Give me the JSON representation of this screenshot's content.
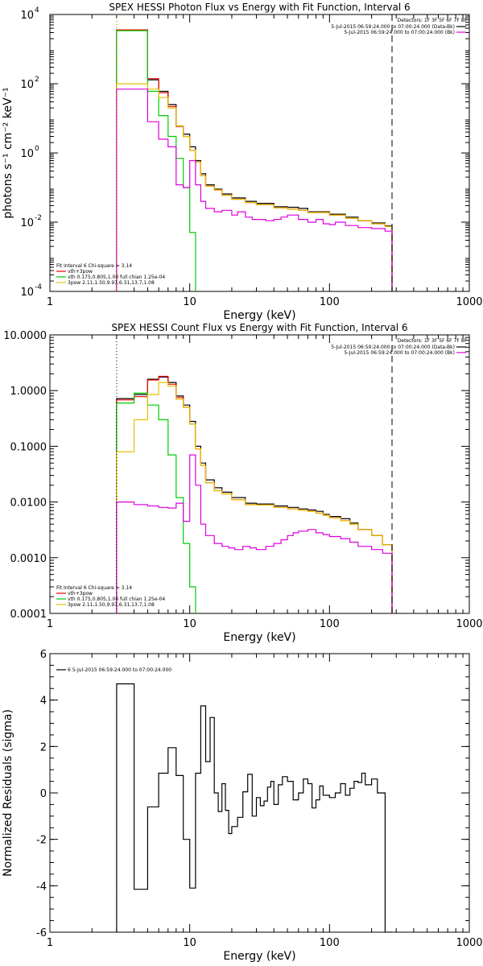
{
  "chart_data": [
    {
      "type": "line",
      "step": true,
      "title": "SPEX HESSI Photon Flux vs Energy with Fit Function, Interval 6",
      "xlabel": "Energy (keV)",
      "ylabel": "photons s⁻¹ cm⁻² keV⁻¹",
      "xscale": "log",
      "yscale": "log",
      "xlim": [
        1,
        1000
      ],
      "ylim": [
        0.0001,
        10000
      ],
      "xticks": [
        1,
        10,
        100,
        1000
      ],
      "xtick_labels": [
        "1",
        "10",
        "100",
        "1000"
      ],
      "yticks": [
        0.0001,
        0.01,
        1,
        100,
        10000
      ],
      "ytick_labels": [
        {
          "base": "10",
          "exp": "-4"
        },
        {
          "base": "10",
          "exp": "-2"
        },
        {
          "base": "10",
          "exp": "0"
        },
        {
          "base": "10",
          "exp": "2"
        },
        {
          "base": "10",
          "exp": "4"
        }
      ],
      "legend_top_right": {
        "header": "Detectors: 1F 3F 5F 6F 7F 8F",
        "entries": [
          {
            "text": "5-Jul-2015 06:59:24.000 to 07:00:24.000 (Data-Bk)",
            "color": "#000000"
          },
          {
            "text": "5-Jul-2015 06:59:24.000 to 07:00:24.000 (Bk)",
            "color": "#dd00dd"
          }
        ]
      },
      "legend_bottom_left": {
        "header": "Fit Interval 6   Chi-square = 3.14",
        "entries": [
          {
            "text": "vth+3pow",
            "color": "#ee0000"
          },
          {
            "text": "vth 0.175,0.805,1.00  full chian 1.25e-04",
            "color": "#00cc00"
          },
          {
            "text": "3pow 2.11,1.50,9.97,6.31,13.7,1.08",
            "color": "#e8c000"
          }
        ]
      },
      "vlines": [
        {
          "x": 3.0,
          "style": "dotted",
          "color": "#000000"
        },
        {
          "x": 3.0,
          "style": "dotted",
          "color": "#e8a000"
        },
        {
          "x": 280,
          "style": "dashed",
          "color": "#000000"
        }
      ],
      "series": [
        {
          "name": "Data-Bk",
          "color": "#000000",
          "x": [
            3.0,
            4.0,
            5.0,
            6.0,
            7.0,
            8.0,
            9.0,
            10.0,
            11.0,
            12.0,
            13.0,
            15.0,
            17.0,
            20.0,
            25.0,
            30.0,
            40.0,
            50.0,
            60.0,
            70.0,
            100.0,
            130.0,
            160.0,
            200.0,
            250.0,
            280.0
          ],
          "y": [
            3500,
            3500,
            130,
            60,
            25,
            6,
            3.5,
            1.5,
            0.6,
            0.25,
            0.12,
            0.09,
            0.065,
            0.05,
            0.04,
            0.035,
            0.028,
            0.027,
            0.025,
            0.02,
            0.017,
            0.014,
            0.011,
            0.0095,
            0.0078,
            null
          ]
        },
        {
          "name": "vth+3pow",
          "color": "#ee0000",
          "x": [
            3.0,
            4.0,
            5.0,
            6.0,
            7.0,
            8.0,
            9.0,
            10.0,
            11.0,
            12.0,
            13.0,
            15.0,
            17.0,
            20.0,
            25.0,
            30.0,
            40.0,
            50.0,
            60.0,
            70.0,
            100.0,
            130.0,
            160.0,
            200.0,
            250.0,
            280.0
          ],
          "y": [
            3600,
            3600,
            140,
            55,
            22,
            5.8,
            3.0,
            1.2,
            0.55,
            0.22,
            0.11,
            0.085,
            0.06,
            0.046,
            0.037,
            0.032,
            0.026,
            0.024,
            0.022,
            0.019,
            0.016,
            0.013,
            0.011,
            0.009,
            0.0075,
            null
          ]
        },
        {
          "name": "vth",
          "color": "#00cc00",
          "x": [
            3.0,
            4.0,
            5.0,
            6.0,
            7.0,
            8.0,
            9.0,
            10.0,
            11.0
          ],
          "y": [
            3400,
            3400,
            60,
            12,
            3,
            0.7,
            0.1,
            0.005,
            null
          ]
        },
        {
          "name": "3pow",
          "color": "#e8c000",
          "x": [
            3.0,
            4.0,
            5.0,
            6.0,
            7.0,
            8.0,
            9.0,
            10.0,
            11.0,
            12.0,
            13.0,
            15.0,
            17.0,
            20.0,
            25.0,
            30.0,
            40.0,
            50.0,
            60.0,
            70.0,
            100.0,
            130.0,
            160.0,
            200.0,
            250.0,
            280.0
          ],
          "y": [
            100,
            100,
            70,
            40,
            20,
            6,
            3.0,
            1.2,
            0.55,
            0.22,
            0.11,
            0.085,
            0.06,
            0.046,
            0.037,
            0.032,
            0.026,
            0.024,
            0.022,
            0.019,
            0.016,
            0.013,
            0.011,
            0.009,
            0.0075,
            null
          ]
        },
        {
          "name": "Bk",
          "color": "#dd00dd",
          "x": [
            3.0,
            4.0,
            5.0,
            6.0,
            7.0,
            8.0,
            9.0,
            10.0,
            11.0,
            12.0,
            13.0,
            15.0,
            17.0,
            20.0,
            22.0,
            25.0,
            28.0,
            30.0,
            35.0,
            40.0,
            45.0,
            50.0,
            60.0,
            70.0,
            80.0,
            90.0,
            100.0,
            110.0,
            130.0,
            160.0,
            200.0,
            250.0,
            280.0
          ],
          "y": [
            70,
            70,
            8,
            2.5,
            1.5,
            0.12,
            0.1,
            0.6,
            0.12,
            0.04,
            0.025,
            0.02,
            0.022,
            0.016,
            0.02,
            0.014,
            0.012,
            0.012,
            0.011,
            0.012,
            0.014,
            0.016,
            0.012,
            0.01,
            0.012,
            0.009,
            0.0085,
            0.01,
            0.008,
            0.007,
            0.0065,
            0.0055,
            null
          ]
        }
      ]
    },
    {
      "type": "line",
      "step": true,
      "title": "SPEX HESSI Count Flux vs Energy with Fit Function, Interval 6",
      "xlabel": "Energy (keV)",
      "ylabel": "",
      "xscale": "log",
      "yscale": "log",
      "xlim": [
        1,
        1000
      ],
      "ylim": [
        0.0001,
        10
      ],
      "xticks": [
        1,
        10,
        100,
        1000
      ],
      "xtick_labels": [
        "1",
        "10",
        "100",
        "1000"
      ],
      "yticks": [
        0.0001,
        0.001,
        0.01,
        0.1,
        1,
        10
      ],
      "ytick_labels": [
        "0.0001",
        "0.0010",
        "0.0100",
        "0.1000",
        "1.0000",
        "10.0000"
      ],
      "legend_top_right": {
        "header": "Detectors: 1F 3F 5F 6F 7F 8F",
        "entries": [
          {
            "text": "5-Jul-2015 06:59:24.000 to 07:00:24.000 (Data-Bk)",
            "color": "#000000"
          },
          {
            "text": "5-Jul-2015 06:59:24.000 to 07:00:24.000 (Bk)",
            "color": "#dd00dd"
          }
        ]
      },
      "legend_bottom_left": {
        "header": "Fit Interval 6   Chi-square = 3.14",
        "entries": [
          {
            "text": "vth+3pow",
            "color": "#ee0000"
          },
          {
            "text": "vth 0.175,0.805,1.00  full chian 1.25e-04",
            "color": "#00cc00"
          },
          {
            "text": "3pow 2.11,1.50,9.97,6.31,13.7,1.08",
            "color": "#e8c000"
          }
        ]
      },
      "vlines": [
        {
          "x": 3.0,
          "style": "dotted",
          "color": "#000000"
        },
        {
          "x": 280,
          "style": "dashed",
          "color": "#000000"
        }
      ],
      "series": [
        {
          "name": "Data-Bk",
          "color": "#000000",
          "x": [
            3.0,
            4.0,
            5.0,
            6.0,
            7.0,
            8.0,
            9.0,
            10.0,
            11.0,
            12.0,
            13.0,
            15.0,
            17.0,
            20.0,
            25.0,
            30.0,
            40.0,
            50.0,
            60.0,
            70.0,
            80.0,
            90.0,
            100.0,
            120.0,
            140.0,
            160.0,
            200.0,
            240.0,
            280.0
          ],
          "y": [
            0.72,
            0.85,
            1.6,
            1.75,
            1.4,
            0.8,
            0.55,
            0.28,
            0.1,
            0.05,
            0.025,
            0.018,
            0.015,
            0.012,
            0.0095,
            0.0092,
            0.0085,
            0.008,
            0.0075,
            0.0072,
            0.0068,
            0.006,
            0.0055,
            0.005,
            0.0042,
            0.0032,
            0.0025,
            0.0017,
            null
          ]
        },
        {
          "name": "vth+3pow",
          "color": "#ee0000",
          "x": [
            3.0,
            4.0,
            5.0,
            6.0,
            7.0,
            8.0,
            9.0,
            10.0,
            11.0,
            12.0,
            13.0,
            15.0,
            17.0,
            20.0,
            25.0,
            30.0,
            40.0,
            50.0,
            60.0,
            70.0,
            80.0,
            90.0,
            100.0,
            120.0,
            140.0,
            160.0,
            200.0,
            240.0,
            280.0
          ],
          "y": [
            0.68,
            0.78,
            1.55,
            1.8,
            1.3,
            0.75,
            0.5,
            0.25,
            0.09,
            0.045,
            0.022,
            0.016,
            0.014,
            0.011,
            0.009,
            0.0088,
            0.008,
            0.0075,
            0.0071,
            0.0068,
            0.0063,
            0.0058,
            0.0052,
            0.0046,
            0.004,
            0.0032,
            0.0025,
            0.0017,
            null
          ]
        },
        {
          "name": "vth",
          "color": "#00cc00",
          "x": [
            3.0,
            4.0,
            5.0,
            6.0,
            7.0,
            8.0,
            9.0,
            10.0,
            11.0
          ],
          "y": [
            0.6,
            0.9,
            0.55,
            0.3,
            0.07,
            0.012,
            0.0018,
            0.0003,
            null
          ]
        },
        {
          "name": "3pow",
          "color": "#e8c000",
          "x": [
            3.0,
            4.0,
            5.0,
            6.0,
            7.0,
            8.0,
            9.0,
            10.0,
            11.0,
            12.0,
            13.0,
            15.0,
            17.0,
            20.0,
            25.0,
            30.0,
            40.0,
            50.0,
            60.0,
            70.0,
            80.0,
            90.0,
            100.0,
            120.0,
            140.0,
            160.0,
            200.0,
            240.0,
            280.0
          ],
          "y": [
            0.08,
            0.3,
            0.85,
            1.4,
            1.2,
            0.7,
            0.5,
            0.25,
            0.09,
            0.045,
            0.022,
            0.016,
            0.014,
            0.011,
            0.009,
            0.0088,
            0.008,
            0.0075,
            0.0071,
            0.0068,
            0.0063,
            0.0058,
            0.0052,
            0.0046,
            0.004,
            0.0032,
            0.0025,
            0.0017,
            null
          ]
        },
        {
          "name": "Bk",
          "color": "#dd00dd",
          "x": [
            3.0,
            4.0,
            5.0,
            6.0,
            7.0,
            8.0,
            9.0,
            10.0,
            11.0,
            12.0,
            13.0,
            15.0,
            17.0,
            19.0,
            21.0,
            24.0,
            27.0,
            30.0,
            35.0,
            40.0,
            45.0,
            50.0,
            55.0,
            60.0,
            70.0,
            80.0,
            90.0,
            100.0,
            120.0,
            140.0,
            160.0,
            200.0,
            240.0,
            280.0
          ],
          "y": [
            0.01,
            0.009,
            0.0085,
            0.008,
            0.0078,
            0.0095,
            0.0045,
            0.07,
            0.02,
            0.004,
            0.0025,
            0.0018,
            0.0016,
            0.0015,
            0.0014,
            0.0016,
            0.0015,
            0.0014,
            0.0016,
            0.0018,
            0.0021,
            0.0025,
            0.0028,
            0.003,
            0.0032,
            0.0028,
            0.0026,
            0.0024,
            0.0022,
            0.0019,
            0.0016,
            0.0014,
            0.0012,
            null
          ]
        }
      ]
    },
    {
      "type": "line",
      "step": true,
      "title": "",
      "xlabel": "Energy (keV)",
      "ylabel": "Normalized Residuals (sigma)",
      "xscale": "log",
      "yscale": "linear",
      "xlim": [
        1,
        1000
      ],
      "ylim": [
        -6,
        6
      ],
      "xticks": [
        1,
        10,
        100,
        1000
      ],
      "xtick_labels": [
        "1",
        "10",
        "100",
        "1000"
      ],
      "yticks": [
        -6,
        -4,
        -2,
        0,
        2,
        4,
        6
      ],
      "ytick_labels": [
        "-6",
        "-4",
        "-2",
        "0",
        "2",
        "4",
        "6"
      ],
      "legend_top_left": {
        "entries": [
          {
            "text": "6  5-Jul-2015 06:59:24.000 to 07:00:24.000",
            "color": "#000000"
          }
        ]
      },
      "series": [
        {
          "name": "6  5-Jul-2015 06:59:24.000 to 07:00:24.000",
          "color": "#000000",
          "x": [
            3.0,
            4.0,
            5.0,
            6.0,
            7.0,
            8.0,
            9.0,
            10.0,
            11.0,
            12.0,
            13.0,
            14.0,
            15.0,
            16.0,
            17.0,
            18.0,
            19.0,
            20.0,
            22.0,
            24.0,
            26.0,
            28.0,
            30.0,
            32.0,
            34.0,
            36.0,
            38.0,
            40.0,
            43.0,
            46.0,
            50.0,
            55.0,
            60.0,
            65.0,
            70.0,
            75.0,
            80.0,
            85.0,
            90.0,
            100.0,
            110.0,
            120.0,
            130.0,
            140.0,
            150.0,
            160.0,
            170.0,
            180.0,
            200.0,
            220.0,
            250.0,
            280.0
          ],
          "y": [
            4.7,
            -4.15,
            -0.6,
            0.85,
            1.95,
            0.75,
            -2.0,
            -4.1,
            0.85,
            3.75,
            1.35,
            3.25,
            0.0,
            -0.8,
            0.4,
            -0.75,
            -1.75,
            -1.45,
            -1.05,
            0.05,
            0.8,
            -1.0,
            -0.2,
            -0.55,
            -0.35,
            0.25,
            0.5,
            -0.5,
            0.35,
            0.7,
            0.5,
            -0.3,
            0.0,
            0.6,
            0.4,
            -0.65,
            -0.3,
            0.3,
            -0.1,
            -0.2,
            0.0,
            0.4,
            -0.1,
            0.2,
            0.5,
            0.45,
            0.85,
            0.35,
            0.6,
            0.0,
            -6.0,
            null
          ]
        }
      ]
    }
  ]
}
